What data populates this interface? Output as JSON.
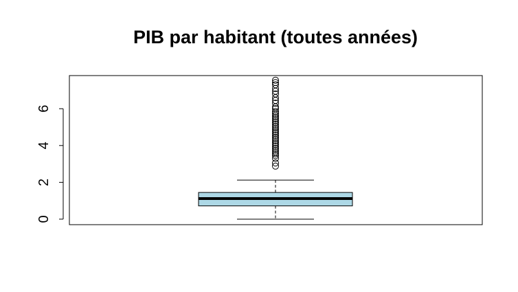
{
  "chart_data": {
    "type": "boxplot",
    "title": "PIB par habitant (toutes années)",
    "xlabel": "",
    "ylabel": "",
    "ylim": [
      -0.3,
      7.8
    ],
    "yticks": [
      0,
      2,
      4,
      6
    ],
    "ytick_labels": [
      "0",
      "2",
      "4",
      "6"
    ],
    "box_color": "#add8e6",
    "series": [
      {
        "whisker_low": 0.0,
        "q1": 0.72,
        "median": 1.12,
        "q3": 1.45,
        "whisker_high": 2.12,
        "outliers": [
          2.88,
          3.05,
          3.3,
          3.45,
          3.55,
          3.65,
          3.75,
          3.85,
          3.95,
          4.05,
          4.15,
          4.25,
          4.35,
          4.45,
          4.55,
          4.65,
          4.75,
          4.85,
          4.95,
          5.05,
          5.15,
          5.25,
          5.35,
          5.45,
          5.55,
          5.65,
          5.75,
          5.85,
          6.0,
          6.1,
          6.3,
          6.45,
          6.6,
          6.8,
          6.95,
          7.1,
          7.3,
          7.42,
          7.55
        ]
      }
    ],
    "grid": false,
    "legend": "none"
  }
}
